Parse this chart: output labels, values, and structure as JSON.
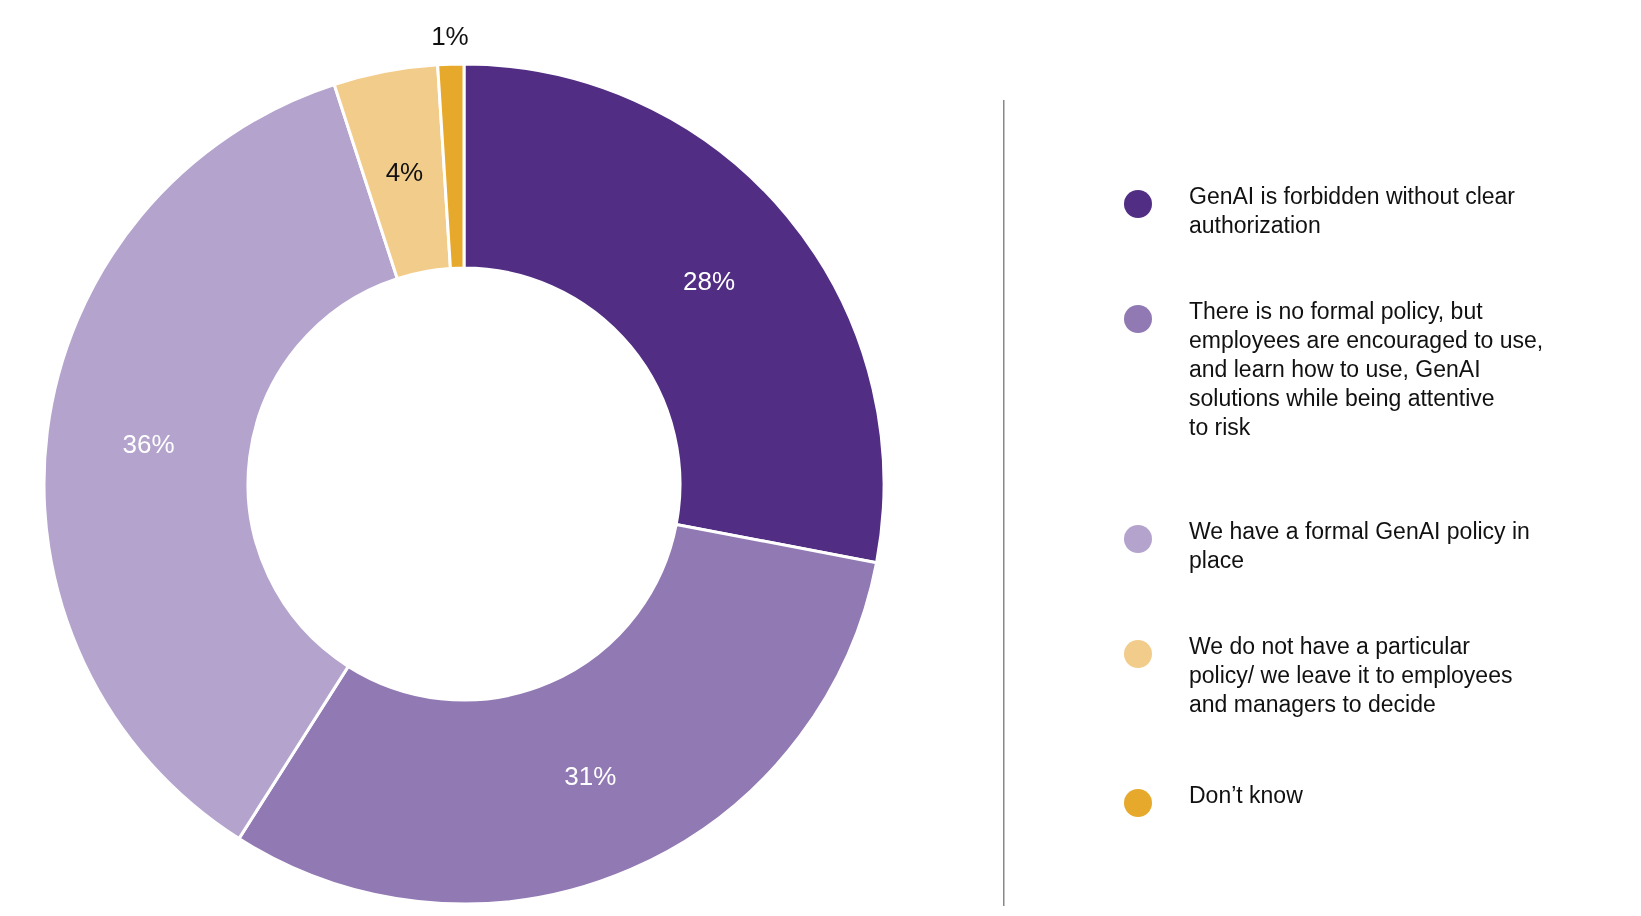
{
  "chart_data": {
    "type": "donut",
    "categories": [
      "GenAI is forbidden without clear authorization",
      "There is no formal policy, but employees are encouraged to use, and learn how to use, GenAI solutions while being attentive to risk",
      "We have a formal GenAI policy in place",
      "We do not have a particular policy/ we leave it to employees and managers to decide",
      "Don’t know"
    ],
    "values": [
      28,
      31,
      36,
      4,
      1
    ],
    "colors": [
      "#512d84",
      "#9179b3",
      "#b3a3cd",
      "#f2cc8a",
      "#e6a92b"
    ],
    "value_labels": [
      "28%",
      "31%",
      "36%",
      "4%",
      "1%"
    ],
    "legend": "right"
  }
}
